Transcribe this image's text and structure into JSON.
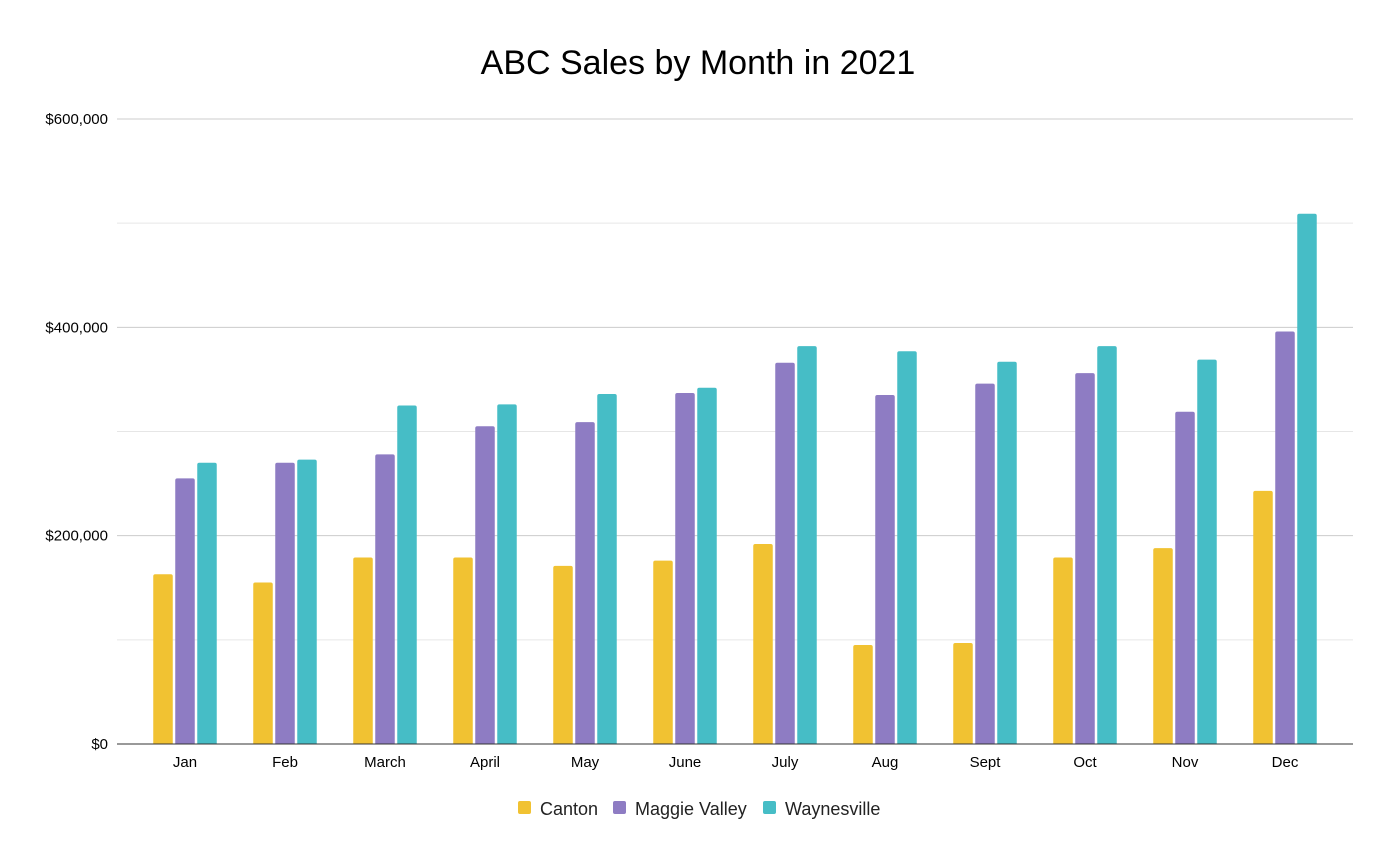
{
  "chart_data": {
    "type": "bar",
    "title": "ABC Sales by Month in 2021",
    "xlabel": "",
    "ylabel": "",
    "ylim": [
      0,
      600000
    ],
    "yticks": [
      0,
      200000,
      400000,
      600000
    ],
    "ytick_labels": [
      "$0",
      "$200,000",
      "$400,000",
      "$600,000"
    ],
    "minor_gridlines": [
      100000,
      300000,
      500000
    ],
    "grid": true,
    "legend_position": "bottom",
    "categories": [
      "Jan",
      "Feb",
      "March",
      "April",
      "May",
      "June",
      "July",
      "Aug",
      "Sept",
      "Oct",
      "Nov",
      "Dec"
    ],
    "series": [
      {
        "name": "Canton",
        "color": "#f1c232",
        "values": [
          163000,
          155000,
          179000,
          179000,
          171000,
          176000,
          192000,
          95000,
          97000,
          179000,
          188000,
          243000
        ]
      },
      {
        "name": "Maggie Valley",
        "color": "#8e7cc3",
        "values": [
          255000,
          270000,
          278000,
          305000,
          309000,
          337000,
          366000,
          335000,
          346000,
          356000,
          319000,
          396000
        ]
      },
      {
        "name": "Waynesville",
        "color": "#46bdc6",
        "values": [
          270000,
          273000,
          325000,
          326000,
          336000,
          342000,
          382000,
          377000,
          367000,
          382000,
          369000,
          509000
        ]
      }
    ]
  }
}
